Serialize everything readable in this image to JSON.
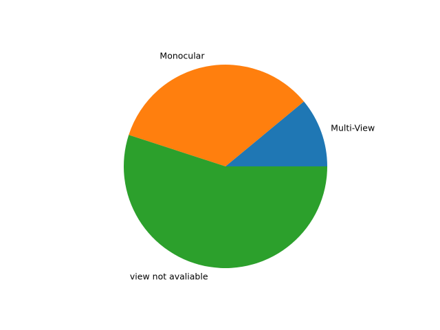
{
  "chart_data": {
    "type": "pie",
    "title": "",
    "start_angle_deg": 0,
    "direction": "counterclockwise",
    "labels": [
      "Multi-View",
      "Monocular",
      "view not avaliable"
    ],
    "values": [
      11,
      34,
      55
    ],
    "colors": [
      "#1f77b4",
      "#ff7f0e",
      "#2ca02c"
    ],
    "legend": "none"
  }
}
